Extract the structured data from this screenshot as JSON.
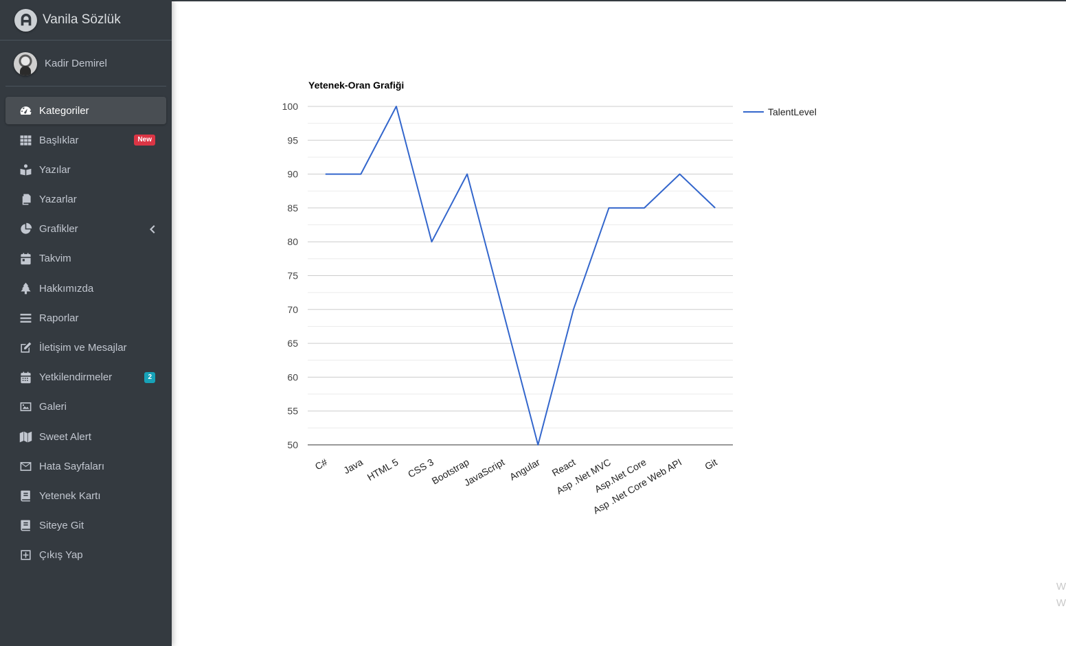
{
  "brand": {
    "title": "Vanila Sözlük"
  },
  "user": {
    "name": "Kadir Demirel"
  },
  "sidebar": {
    "items": [
      {
        "label": "Kategoriler",
        "icon": "dashboard-icon",
        "active": true
      },
      {
        "label": "Başlıklar",
        "icon": "grid-icon",
        "badge": "New",
        "badge_color": "#dc3545"
      },
      {
        "label": "Yazılar",
        "icon": "book-reader-icon"
      },
      {
        "label": "Yazarlar",
        "icon": "copy-icon"
      },
      {
        "label": "Grafikler",
        "icon": "pie-chart-icon",
        "has_chevron": true
      },
      {
        "label": "Takvim",
        "icon": "calendar-day-icon"
      },
      {
        "label": "Hakkımızda",
        "icon": "tree-icon"
      },
      {
        "label": "Raporlar",
        "icon": "bars-icon"
      },
      {
        "label": "İletişim ve Mesajlar",
        "icon": "edit-icon"
      },
      {
        "label": "Yetkilendirmeler",
        "icon": "calendar-icon",
        "badge": "2",
        "badge_color": "#17a2b8"
      },
      {
        "label": "Galeri",
        "icon": "image-icon"
      },
      {
        "label": "Sweet Alert",
        "icon": "map-icon"
      },
      {
        "label": "Hata Sayfaları",
        "icon": "envelope-icon"
      },
      {
        "label": "Yetenek Kartı",
        "icon": "book-icon"
      },
      {
        "label": "Siteye Git",
        "icon": "book-icon"
      },
      {
        "label": "Çıkış Yap",
        "icon": "plus-square-icon"
      }
    ]
  },
  "chart_data": {
    "type": "line",
    "title": "Yetenek-Oran Grafiği",
    "categories": [
      "C#",
      "Java",
      "HTML 5",
      "CSS 3",
      "Bootstrap",
      "JavaScript",
      "Angular",
      "React",
      "Asp .Net MVC",
      "Asp.Net Core",
      "Asp .Net Core Web API",
      "Git"
    ],
    "series": [
      {
        "name": "TalentLevel",
        "color": "#3366cc",
        "values": [
          90,
          90,
          100,
          80,
          90,
          70,
          50,
          70,
          85,
          85,
          90,
          85
        ]
      }
    ],
    "ylim": [
      50,
      100
    ],
    "yticks": [
      50,
      55,
      60,
      65,
      70,
      75,
      80,
      85,
      90,
      95,
      100
    ],
    "grid": true,
    "legend": "right"
  },
  "watermark": {
    "line1": "W",
    "line2": "W"
  }
}
